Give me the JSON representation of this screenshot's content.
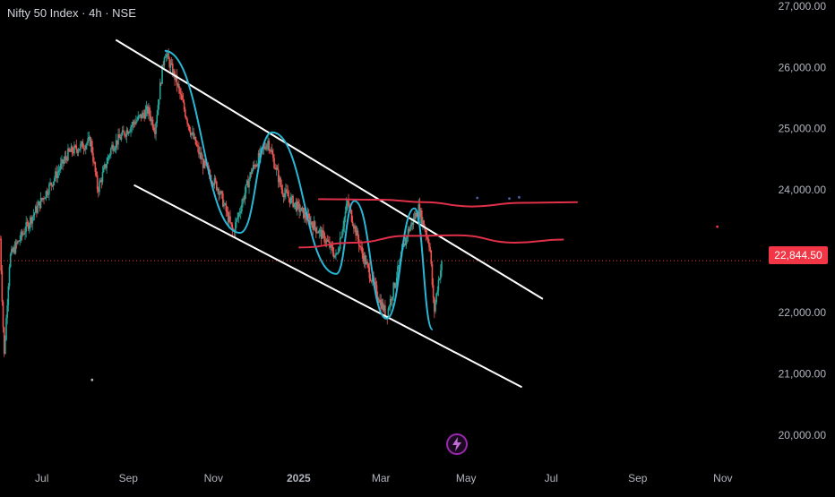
{
  "header": {
    "symbol": "Nifty 50 Index",
    "interval": "4h",
    "exchange": "NSE",
    "separator": "·"
  },
  "price_tag": {
    "value": "22,844.50",
    "color": "#f23645"
  },
  "colors": {
    "candle_up": "#26a69a",
    "candle_down": "#ef5350",
    "channel": "#ffffff",
    "zigzag": "#2ab7d6",
    "ma": "#e0304a",
    "last_price_line": "#f23645",
    "flash": "#9c27b0"
  },
  "chart_data": {
    "type": "candlestick",
    "title": "Nifty 50 Index · 4h · NSE",
    "y_ticks": [
      "27,000.00",
      "26,000.00",
      "25,000.00",
      "24,000.00",
      "23,000.00",
      "22,000.00",
      "21,000.00",
      "20,000.00"
    ],
    "y_tick_values": [
      27000,
      26000,
      25000,
      24000,
      23000,
      22000,
      21000,
      20000
    ],
    "x_ticks": [
      "Jul",
      "Sep",
      "Nov",
      "2025",
      "Mar",
      "May",
      "Jul",
      "Sep",
      "Nov"
    ],
    "x_tick_dates": [
      "2024-07-01",
      "2024-09-01",
      "2024-11-01",
      "2025-01-01",
      "2025-03-01",
      "2025-05-01",
      "2025-07-01",
      "2025-09-01",
      "2025-11-01"
    ],
    "ylim": [
      19500,
      27100
    ],
    "xlim": [
      "2024-06-01",
      "2025-11-30"
    ],
    "last_price": 22844.5,
    "price_path": [
      [
        "2024-06-01",
        23200
      ],
      [
        "2024-06-04",
        21300
      ],
      [
        "2024-06-08",
        22900
      ],
      [
        "2024-06-20",
        23400
      ],
      [
        "2024-07-05",
        24000
      ],
      [
        "2024-07-20",
        24600
      ],
      [
        "2024-08-05",
        24800
      ],
      [
        "2024-08-10",
        24000
      ],
      [
        "2024-08-20",
        24700
      ],
      [
        "2024-09-05",
        25100
      ],
      [
        "2024-09-15",
        25300
      ],
      [
        "2024-09-20",
        25000
      ],
      [
        "2024-09-27",
        26270
      ],
      [
        "2024-10-05",
        25800
      ],
      [
        "2024-10-15",
        25000
      ],
      [
        "2024-10-25",
        24400
      ],
      [
        "2024-11-05",
        24000
      ],
      [
        "2024-11-15",
        23300
      ],
      [
        "2024-11-28",
        24300
      ],
      [
        "2024-12-10",
        24800
      ],
      [
        "2024-12-20",
        24000
      ],
      [
        "2025-01-05",
        23600
      ],
      [
        "2025-01-20",
        23200
      ],
      [
        "2025-01-28",
        22900
      ],
      [
        "2025-02-05",
        23800
      ],
      [
        "2025-02-15",
        23000
      ],
      [
        "2025-02-28",
        22200
      ],
      [
        "2025-03-05",
        21950
      ],
      [
        "2025-03-20",
        23300
      ],
      [
        "2025-03-28",
        23700
      ],
      [
        "2025-04-05",
        23100
      ],
      [
        "2025-04-08",
        22000
      ],
      [
        "2025-04-11",
        22500
      ],
      [
        "2025-04-14",
        22844.5
      ]
    ],
    "channel": {
      "upper": [
        [
          "2024-08-23",
          26450
        ],
        [
          "2025-06-25",
          22220
        ]
      ],
      "lower": [
        [
          "2024-09-05",
          24080
        ],
        [
          "2025-06-10",
          20780
        ]
      ]
    },
    "zigzag": [
      [
        "2024-09-27",
        26270
      ],
      [
        "2024-11-20",
        23300
      ],
      [
        "2024-12-13",
        24940
      ],
      [
        "2025-01-28",
        22630
      ],
      [
        "2025-02-10",
        23820
      ],
      [
        "2025-03-05",
        21900
      ],
      [
        "2025-03-25",
        23700
      ],
      [
        "2025-04-07",
        21720
      ]
    ],
    "ma_upper": [
      [
        "2025-01-15",
        23850
      ],
      [
        "2025-03-01",
        23840
      ],
      [
        "2025-04-01",
        23800
      ],
      [
        "2025-05-05",
        23730
      ],
      [
        "2025-06-10",
        23790
      ],
      [
        "2025-07-20",
        23800
      ]
    ],
    "ma_lower": [
      [
        "2025-01-01",
        23060
      ],
      [
        "2025-02-10",
        23140
      ],
      [
        "2025-03-20",
        23250
      ],
      [
        "2025-04-25",
        23260
      ],
      [
        "2025-06-05",
        23140
      ],
      [
        "2025-07-10",
        23190
      ]
    ],
    "markers": [
      {
        "date": "2024-08-06",
        "price": 20900,
        "color": "#b2b5be"
      },
      {
        "date": "2025-05-09",
        "price": 23870,
        "color": "#4a5fa8"
      },
      {
        "date": "2025-06-01",
        "price": 23860,
        "color": "#4a5fa8"
      },
      {
        "date": "2025-06-08",
        "price": 23880,
        "color": "#4a5fa8"
      },
      {
        "date": "2025-10-28",
        "price": 23400,
        "color": "#f23645"
      }
    ]
  }
}
